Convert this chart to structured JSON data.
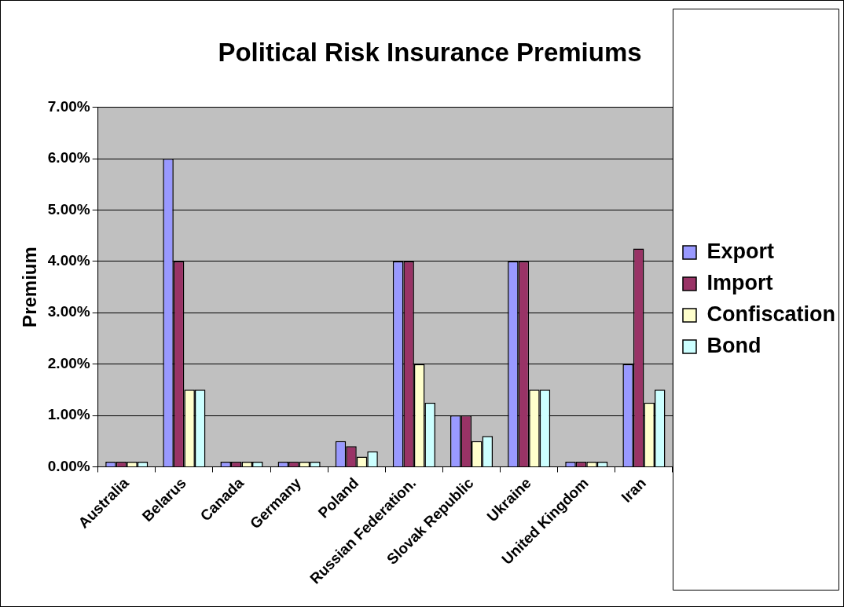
{
  "chart_data": {
    "type": "bar",
    "title": "Political Risk Insurance Premiums",
    "ylabel": "Premium",
    "categories": [
      "Australia",
      "Belarus",
      "Canada",
      "Germany",
      "Poland",
      "Russian Federation.",
      "Slovak Republic",
      "Ukraine",
      "United Kingdom",
      "Iran"
    ],
    "series": [
      {
        "name": "Export",
        "color": "#9999ff",
        "values": [
          0.1,
          6,
          0.1,
          0.1,
          0.5,
          4,
          1,
          4,
          0.1,
          2
        ]
      },
      {
        "name": "Import",
        "color": "#993366",
        "values": [
          0.1,
          4,
          0.1,
          0.1,
          0.4,
          4,
          1,
          4,
          0.1,
          4.25
        ]
      },
      {
        "name": "Confiscation",
        "color": "#ffffcc",
        "values": [
          0.1,
          1.5,
          0.1,
          0.1,
          0.2,
          2,
          0.5,
          1.5,
          0.1,
          1.25
        ]
      },
      {
        "name": "Bond",
        "color": "#ccffff",
        "values": [
          0.1,
          1.5,
          0.1,
          0.1,
          0.3,
          1.25,
          0.6,
          1.5,
          0.1,
          1.5
        ]
      }
    ],
    "ylim": [
      0,
      7
    ],
    "yticks": [
      {
        "value": 0,
        "label": "0.00%"
      },
      {
        "value": 1,
        "label": "1.00%"
      },
      {
        "value": 2,
        "label": "2.00%"
      },
      {
        "value": 3,
        "label": "3.00%"
      },
      {
        "value": 4,
        "label": "4.00%"
      },
      {
        "value": 5,
        "label": "5.00%"
      },
      {
        "value": 6,
        "label": "6.00%"
      },
      {
        "value": 7,
        "label": "7.00%"
      }
    ],
    "grid": "y",
    "legend": "right"
  }
}
